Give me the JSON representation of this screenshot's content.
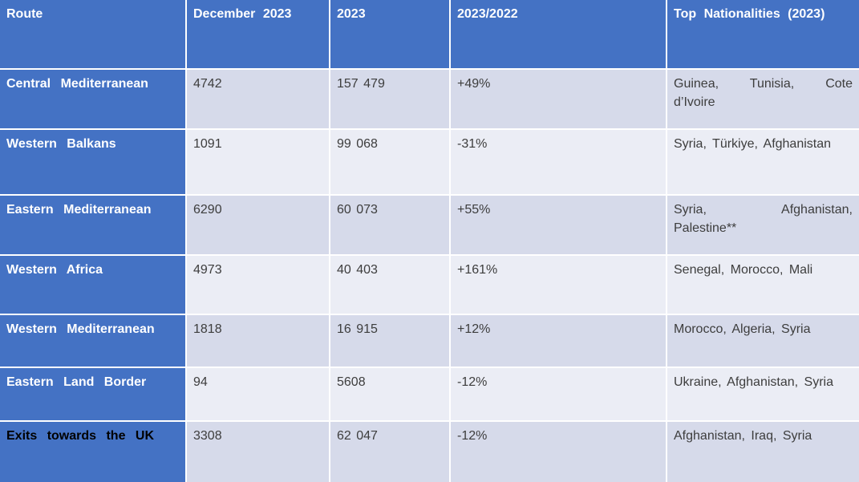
{
  "chart_data": {
    "type": "table",
    "columns": [
      "Route",
      "December 2023",
      "2023",
      "2023/2022",
      "Top Nationalities (2023)"
    ],
    "rows": [
      {
        "route": "Central Mediterranean",
        "december_2023": "4742",
        "total_2023": "157 479",
        "change_2023_2022": "+49%",
        "top_nationalities": "Guinea, Tunisia, Cote\nd’Ivoire"
      },
      {
        "route": "Western Balkans",
        "december_2023": "1091",
        "total_2023": "99 068",
        "change_2023_2022": "-31%",
        "top_nationalities": "Syria, Türkiye, Afghanistan"
      },
      {
        "route": "Eastern Mediterranean",
        "december_2023": "6290",
        "total_2023": "60 073",
        "change_2023_2022": "+55%",
        "top_nationalities": "Syria, Afghanistan,\nPalestine**"
      },
      {
        "route": "Western Africa",
        "december_2023": "4973",
        "total_2023": "40 403",
        "change_2023_2022": "+161%",
        "top_nationalities": "Senegal, Morocco, Mali"
      },
      {
        "route": "Western Mediterranean",
        "december_2023": "1818",
        "total_2023": "16 915",
        "change_2023_2022": "+12%",
        "top_nationalities": "Morocco, Algeria, Syria"
      },
      {
        "route": "Eastern Land Border",
        "december_2023": "94",
        "total_2023": "5608",
        "change_2023_2022": "-12%",
        "top_nationalities": "Ukraine, Afghanistan, Syria"
      },
      {
        "route": "Exits towards the UK",
        "december_2023": "3308",
        "total_2023": "62 047",
        "change_2023_2022": "-12%",
        "top_nationalities": "Afghanistan, Iraq, Syria"
      }
    ],
    "colors": {
      "header_background": "#4472C4",
      "route_column_background": "#4472C4",
      "band_dark": "#D6DAEA",
      "band_light": "#EBEDF5",
      "header_text": "#FFFFFF",
      "route_text": "#FFFFFF",
      "last_route_text": "#000000",
      "body_text": "#3D3D3D",
      "grid_lines": "#FFFFFF"
    },
    "layout": {
      "grid": "on",
      "banded_rows": true
    }
  }
}
